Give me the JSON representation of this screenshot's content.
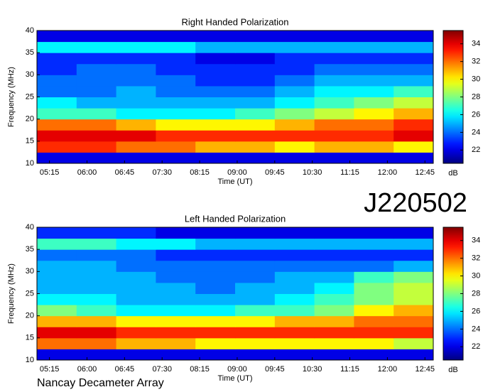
{
  "header": {
    "title": "J220502"
  },
  "footer": {
    "text": "Nancay Decameter Array"
  },
  "chart_data": [
    {
      "type": "heatmap",
      "title": "Right Handed Polarization",
      "x_label": "Time (UT)",
      "y_label": "Frequency (MHz)",
      "colorbar_label": "dB",
      "colormap": "jet",
      "x_bins": [
        300,
        347.5,
        395,
        442.5,
        490,
        537.5,
        585,
        632.5,
        680,
        727.5,
        775
      ],
      "y_bins": [
        10,
        12.5,
        15,
        17.5,
        20,
        22.5,
        25,
        27.5,
        30,
        32.5,
        35,
        37.5,
        40
      ],
      "z": [
        [
          22,
          22,
          22,
          22,
          22,
          22,
          22,
          22,
          22,
          22
        ],
        [
          33,
          33,
          32,
          32,
          31,
          31,
          30,
          31,
          31,
          30
        ],
        [
          34,
          34,
          34,
          33,
          33,
          33,
          33,
          33,
          33,
          34
        ],
        [
          32,
          32,
          31,
          30,
          30,
          30,
          31,
          32,
          32,
          33
        ],
        [
          27,
          27,
          26,
          26,
          26,
          27,
          28,
          29,
          30,
          31
        ],
        [
          26,
          25,
          25,
          25,
          25,
          25,
          26,
          27,
          28,
          29
        ],
        [
          24,
          24,
          25,
          24,
          24,
          24,
          25,
          26,
          26,
          27
        ],
        [
          24,
          24,
          24,
          24,
          23,
          23,
          24,
          25,
          25,
          25
        ],
        [
          23,
          24,
          24,
          23,
          23,
          23,
          23,
          24,
          24,
          24
        ],
        [
          23,
          23,
          23,
          23,
          22,
          22,
          23,
          23,
          23,
          23
        ],
        [
          26,
          26,
          26,
          26,
          25,
          25,
          25,
          25,
          25,
          25
        ],
        [
          22,
          22,
          22,
          22,
          22,
          22,
          22,
          22,
          22,
          22
        ]
      ],
      "xlim": [
        300,
        775
      ],
      "xticks": [
        {
          "value": 315,
          "label": "05:15"
        },
        {
          "value": 360,
          "label": "06:00"
        },
        {
          "value": 405,
          "label": "06:45"
        },
        {
          "value": 450,
          "label": "07:30"
        },
        {
          "value": 495,
          "label": "08:15"
        },
        {
          "value": 540,
          "label": "09:00"
        },
        {
          "value": 585,
          "label": "09:45"
        },
        {
          "value": 630,
          "label": "10:30"
        },
        {
          "value": 675,
          "label": "11:15"
        },
        {
          "value": 720,
          "label": "12:00"
        },
        {
          "value": 765,
          "label": "12:45"
        }
      ],
      "ylim": [
        10,
        40
      ],
      "yticks": [
        10,
        15,
        20,
        25,
        30,
        35,
        40
      ],
      "clim": [
        20.5,
        35.5
      ],
      "cticks": [
        22,
        24,
        26,
        28,
        30,
        32,
        34
      ]
    },
    {
      "type": "heatmap",
      "title": "Left Handed Polarization",
      "x_label": "Time (UT)",
      "y_label": "Frequency (MHz)",
      "colorbar_label": "dB",
      "colormap": "jet",
      "x_bins": [
        300,
        347.5,
        395,
        442.5,
        490,
        537.5,
        585,
        632.5,
        680,
        727.5,
        775
      ],
      "y_bins": [
        10,
        12.5,
        15,
        17.5,
        20,
        22.5,
        25,
        27.5,
        30,
        32.5,
        35,
        37.5,
        40
      ],
      "z": [
        [
          22,
          22,
          22,
          22,
          22,
          22,
          22,
          22,
          22,
          22
        ],
        [
          32,
          32,
          31,
          31,
          30,
          30,
          30,
          30,
          30,
          29
        ],
        [
          34,
          34,
          33,
          33,
          33,
          33,
          33,
          33,
          33,
          33
        ],
        [
          31,
          31,
          30,
          30,
          30,
          30,
          31,
          31,
          32,
          32
        ],
        [
          28,
          27,
          26,
          26,
          26,
          27,
          27,
          28,
          30,
          31
        ],
        [
          26,
          26,
          25,
          25,
          25,
          25,
          26,
          27,
          28,
          29
        ],
        [
          25,
          25,
          25,
          25,
          24,
          25,
          25,
          26,
          28,
          29
        ],
        [
          25,
          25,
          25,
          24,
          24,
          24,
          25,
          25,
          27,
          28
        ],
        [
          25,
          25,
          24,
          24,
          24,
          24,
          24,
          24,
          24,
          25
        ],
        [
          24,
          24,
          24,
          23,
          23,
          23,
          23,
          23,
          23,
          23
        ],
        [
          27,
          27,
          26,
          26,
          25,
          25,
          25,
          25,
          25,
          25
        ],
        [
          23,
          23,
          23,
          22,
          22,
          22,
          22,
          22,
          22,
          22
        ]
      ],
      "xlim": [
        300,
        775
      ],
      "xticks": [
        {
          "value": 315,
          "label": "05:15"
        },
        {
          "value": 360,
          "label": "06:00"
        },
        {
          "value": 405,
          "label": "06:45"
        },
        {
          "value": 450,
          "label": "07:30"
        },
        {
          "value": 495,
          "label": "08:15"
        },
        {
          "value": 540,
          "label": "09:00"
        },
        {
          "value": 585,
          "label": "09:45"
        },
        {
          "value": 630,
          "label": "10:30"
        },
        {
          "value": 675,
          "label": "11:15"
        },
        {
          "value": 720,
          "label": "12:00"
        },
        {
          "value": 765,
          "label": "12:45"
        }
      ],
      "ylim": [
        10,
        40
      ],
      "yticks": [
        10,
        15,
        20,
        25,
        30,
        35,
        40
      ],
      "clim": [
        20.5,
        35.5
      ],
      "cticks": [
        22,
        24,
        26,
        28,
        30,
        32,
        34
      ]
    }
  ]
}
